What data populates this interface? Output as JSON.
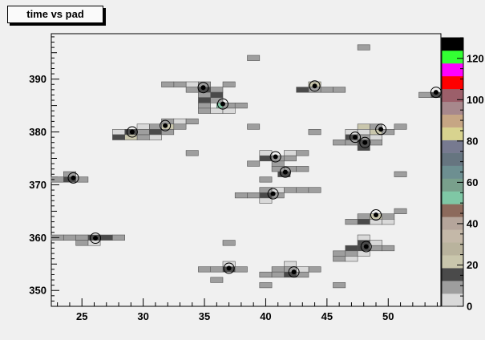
{
  "chart_data": {
    "type": "heatmap",
    "title": "time vs pad",
    "xlabel": "",
    "ylabel": "",
    "xlim": [
      22.5,
      54.3
    ],
    "ylim": [
      347,
      398.6
    ],
    "x_ticks": [
      25,
      30,
      35,
      40,
      45,
      50
    ],
    "y_ticks": [
      350,
      360,
      370,
      380,
      390
    ],
    "z_range": [
      0,
      130
    ],
    "z_ticks": [
      0,
      20,
      40,
      60,
      80,
      100,
      120
    ],
    "palette": [
      "#d9d9d9",
      "#9e9e9e",
      "#4a4a4a",
      "#c9c6ac",
      "#b9b39d",
      "#c4b8a8",
      "#b5a59b",
      "#8c6a5c",
      "#7fc7a5",
      "#79a08c",
      "#6d8f91",
      "#667580",
      "#777a90",
      "#d8d38f",
      "#c6a684",
      "#a7888c",
      "#9c5f6a",
      "#ff0000",
      "#ff00ff",
      "#33ff33",
      "#000000"
    ],
    "cells": [
      [
        24,
        371,
        2
      ],
      [
        22.5,
        371,
        2
      ],
      [
        23,
        371,
        1
      ],
      [
        25,
        371,
        1
      ],
      [
        24,
        372,
        1
      ],
      [
        26,
        360,
        2
      ],
      [
        25,
        360,
        1
      ],
      [
        27,
        360,
        2
      ],
      [
        28,
        360,
        1
      ],
      [
        24,
        360,
        1
      ],
      [
        23,
        360,
        1
      ],
      [
        26,
        359,
        0
      ],
      [
        25,
        359,
        1
      ],
      [
        29,
        380,
        2
      ],
      [
        28,
        379,
        2
      ],
      [
        30,
        379,
        1
      ],
      [
        29,
        379,
        3
      ],
      [
        28,
        380,
        0
      ],
      [
        30,
        380,
        1
      ],
      [
        32,
        381,
        3
      ],
      [
        31,
        380,
        2
      ],
      [
        33,
        381,
        1
      ],
      [
        32,
        382,
        1
      ],
      [
        31,
        381,
        1
      ],
      [
        30,
        381,
        0
      ],
      [
        33,
        382,
        0
      ],
      [
        34,
        382,
        1
      ],
      [
        32,
        380,
        1
      ],
      [
        31,
        379,
        0
      ],
      [
        35,
        388,
        2
      ],
      [
        36,
        388,
        1
      ],
      [
        34,
        388,
        1
      ],
      [
        35,
        389,
        1
      ],
      [
        34,
        389,
        0
      ],
      [
        33,
        389,
        1
      ],
      [
        32,
        389,
        1
      ],
      [
        37,
        389,
        1
      ],
      [
        36,
        387,
        2
      ],
      [
        35,
        387,
        1
      ],
      [
        36.5,
        385,
        8
      ],
      [
        35,
        386,
        2
      ],
      [
        36,
        386,
        1
      ],
      [
        35,
        385,
        1
      ],
      [
        37,
        385,
        1
      ],
      [
        38,
        385,
        1
      ],
      [
        36,
        384,
        0
      ],
      [
        37,
        384,
        0
      ],
      [
        35,
        384,
        1
      ],
      [
        34,
        376,
        1
      ],
      [
        39,
        394,
        1
      ],
      [
        39,
        381,
        1
      ],
      [
        37,
        354,
        2
      ],
      [
        36,
        354,
        1
      ],
      [
        35,
        354,
        1
      ],
      [
        38,
        354,
        1
      ],
      [
        37,
        355,
        0
      ],
      [
        36,
        352,
        1
      ],
      [
        37,
        359,
        1
      ],
      [
        40,
        351,
        1
      ],
      [
        40,
        353,
        1
      ],
      [
        42,
        353,
        2
      ],
      [
        43,
        353,
        1
      ],
      [
        42,
        354,
        1
      ],
      [
        41,
        354,
        1
      ],
      [
        44,
        354,
        1
      ],
      [
        43,
        354,
        0
      ],
      [
        41,
        353,
        1
      ],
      [
        42,
        355,
        0
      ],
      [
        40,
        375,
        2
      ],
      [
        41,
        375,
        1
      ],
      [
        42,
        376,
        0
      ],
      [
        42,
        375,
        1
      ],
      [
        43,
        376,
        1
      ],
      [
        39,
        374,
        1
      ],
      [
        40,
        376,
        0
      ],
      [
        41,
        374,
        1
      ],
      [
        41.5,
        372,
        2
      ],
      [
        41,
        373,
        1
      ],
      [
        42,
        373,
        1
      ],
      [
        40,
        371,
        1
      ],
      [
        43,
        373,
        1
      ],
      [
        40,
        368,
        2
      ],
      [
        41,
        368,
        1
      ],
      [
        39,
        368,
        1
      ],
      [
        38,
        368,
        1
      ],
      [
        40,
        369,
        1
      ],
      [
        41,
        369,
        0
      ],
      [
        42,
        369,
        1
      ],
      [
        43,
        369,
        1
      ],
      [
        40,
        367,
        0
      ],
      [
        44,
        369,
        1
      ],
      [
        44,
        389,
        3
      ],
      [
        44,
        388,
        1
      ],
      [
        43,
        388,
        2
      ],
      [
        45,
        388,
        1
      ],
      [
        46,
        388,
        1
      ],
      [
        44,
        380,
        1
      ],
      [
        47,
        379,
        2
      ],
      [
        48,
        379,
        1
      ],
      [
        48,
        378,
        2
      ],
      [
        47,
        378,
        1
      ],
      [
        46,
        378,
        1
      ],
      [
        49,
        378,
        1
      ],
      [
        48,
        377,
        2
      ],
      [
        49,
        379,
        0
      ],
      [
        47,
        380,
        0
      ],
      [
        48,
        381,
        3
      ],
      [
        49,
        381,
        1
      ],
      [
        49,
        380,
        3
      ],
      [
        50,
        380,
        1
      ],
      [
        51,
        381,
        1
      ],
      [
        48,
        380,
        0
      ],
      [
        48,
        396,
        1
      ],
      [
        51,
        372,
        1
      ],
      [
        49,
        364,
        3
      ],
      [
        48,
        364,
        1
      ],
      [
        50,
        364,
        1
      ],
      [
        51,
        365,
        1
      ],
      [
        48,
        363,
        2
      ],
      [
        47,
        363,
        1
      ],
      [
        49,
        363,
        0
      ],
      [
        50,
        363,
        0
      ],
      [
        48,
        358,
        2
      ],
      [
        47,
        358,
        2
      ],
      [
        49,
        358,
        1
      ],
      [
        50,
        358,
        1
      ],
      [
        46,
        357,
        1
      ],
      [
        47,
        357,
        1
      ],
      [
        48,
        359,
        2
      ],
      [
        49,
        359,
        0
      ],
      [
        48,
        360,
        0
      ],
      [
        46,
        356,
        1
      ],
      [
        47,
        356,
        0
      ],
      [
        48,
        357,
        0
      ],
      [
        46,
        351,
        1
      ],
      [
        54,
        387,
        2
      ],
      [
        53,
        387,
        1
      ]
    ],
    "markers": [
      [
        24.3,
        371.3
      ],
      [
        26.1,
        359.9
      ],
      [
        29.1,
        380.0
      ],
      [
        31.8,
        381.2
      ],
      [
        34.9,
        388.4
      ],
      [
        36.5,
        385.3
      ],
      [
        37.0,
        354.2
      ],
      [
        42.3,
        353.5
      ],
      [
        40.8,
        375.3
      ],
      [
        41.6,
        372.4
      ],
      [
        40.6,
        368.3
      ],
      [
        44.0,
        388.7
      ],
      [
        47.3,
        379.0
      ],
      [
        48.1,
        378.0
      ],
      [
        49.4,
        380.5
      ],
      [
        49.0,
        364.3
      ],
      [
        48.2,
        358.3
      ],
      [
        53.9,
        387.5
      ]
    ]
  }
}
